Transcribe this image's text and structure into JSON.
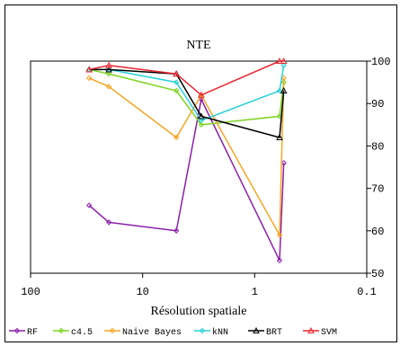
{
  "chart_data": {
    "type": "line",
    "title": "NTE",
    "xlabel": "Résolution spatiale",
    "ylabel": "",
    "x_scale": "log",
    "x_reversed": true,
    "xlim": [
      100,
      0.1
    ],
    "ylim": [
      50,
      100
    ],
    "x_ticks": [
      100,
      10,
      1,
      0.1
    ],
    "x_tick_labels": [
      "100",
      "10",
      "1",
      "0.1"
    ],
    "y_ticks": [
      50,
      60,
      70,
      80,
      90,
      100
    ],
    "y_tick_labels": [
      "50",
      "60",
      "70",
      "80",
      "90",
      "100"
    ],
    "grid": false,
    "legend_position": "bottom",
    "series": [
      {
        "name": "RF",
        "color": "#8b1fa9",
        "marker": "diamond",
        "x": [
          30,
          20,
          5,
          3,
          0.6,
          0.55
        ],
        "y": [
          66,
          62,
          60,
          91,
          53,
          76
        ]
      },
      {
        "name": "c4.5",
        "color": "#7ed321",
        "marker": "diamond",
        "x": [
          30,
          20,
          5,
          3,
          0.6,
          0.55
        ],
        "y": [
          98,
          97,
          93,
          85,
          87,
          95
        ]
      },
      {
        "name": "Naive Bayes",
        "color": "#f5a623",
        "marker": "diamond",
        "x": [
          30,
          20,
          5,
          3,
          0.6,
          0.55
        ],
        "y": [
          96,
          94,
          82,
          92,
          59,
          96
        ]
      },
      {
        "name": "kNN",
        "color": "#27d0d8",
        "marker": "diamond",
        "x": [
          30,
          20,
          5,
          3,
          0.6,
          0.55
        ],
        "y": [
          98,
          98,
          95,
          86,
          93,
          99
        ]
      },
      {
        "name": "BRT",
        "color": "#000000",
        "marker": "triangle",
        "x": [
          30,
          20,
          5,
          3,
          0.6,
          0.55
        ],
        "y": [
          98,
          98,
          97,
          87,
          82,
          93
        ]
      },
      {
        "name": "SVM",
        "color": "#e8242f",
        "marker": "triangle",
        "x": [
          30,
          20,
          5,
          3,
          0.6,
          0.55
        ],
        "y": [
          98,
          99,
          97,
          92,
          100,
          100
        ]
      }
    ]
  }
}
